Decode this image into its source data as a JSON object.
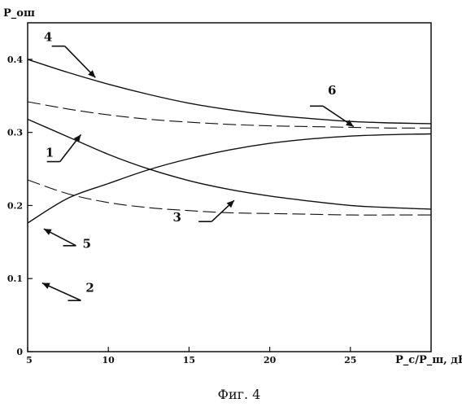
{
  "chart_data": {
    "type": "line",
    "title": "",
    "xlabel": "P_c/P_ш, дБ",
    "ylabel": "P_ош",
    "caption": "Фиг. 4",
    "xlim": [
      5,
      30
    ],
    "ylim": [
      0,
      0.45
    ],
    "x_ticks": [
      5,
      10,
      15,
      20,
      25
    ],
    "y_ticks": [
      0,
      0.1,
      0.2,
      0.3,
      0.4
    ],
    "series": [
      {
        "name": "4",
        "style": "solid",
        "x": [
          5,
          7.5,
          10,
          12.5,
          15,
          17.5,
          20,
          22.5,
          25,
          27.5,
          30
        ],
        "y": [
          0.4,
          0.382,
          0.366,
          0.352,
          0.34,
          0.331,
          0.324,
          0.319,
          0.315,
          0.313,
          0.312
        ]
      },
      {
        "name": "6",
        "style": "dashed",
        "x": [
          5,
          7.5,
          10,
          12.5,
          15,
          17.5,
          20,
          22.5,
          25,
          27.5,
          30
        ],
        "y": [
          0.342,
          0.332,
          0.324,
          0.318,
          0.314,
          0.311,
          0.309,
          0.308,
          0.307,
          0.306,
          0.306
        ]
      },
      {
        "name": "1",
        "style": "solid",
        "x": [
          5,
          7.5,
          10,
          12.5,
          15,
          17.5,
          20,
          22.5,
          25,
          27.5,
          30
        ],
        "y": [
          0.318,
          0.294,
          0.27,
          0.25,
          0.234,
          0.222,
          0.213,
          0.206,
          0.2,
          0.197,
          0.195
        ]
      },
      {
        "name": "5",
        "style": "solid",
        "x": [
          5,
          7.5,
          10,
          12.5,
          15,
          17.5,
          20,
          22.5,
          25,
          27.5,
          30
        ],
        "y": [
          0.176,
          0.21,
          0.23,
          0.249,
          0.264,
          0.276,
          0.285,
          0.291,
          0.295,
          0.297,
          0.298
        ]
      },
      {
        "name": "3",
        "style": "dashed",
        "x": [
          5,
          7.5,
          10,
          12.5,
          15,
          17.5,
          20,
          22.5,
          25,
          27.5,
          30
        ],
        "y": [
          0.235,
          0.216,
          0.204,
          0.197,
          0.193,
          0.19,
          0.189,
          0.188,
          0.187,
          0.187,
          0.187
        ]
      }
    ],
    "labels": [
      {
        "text": "4",
        "at_x": 9.2,
        "at_y": 0.375,
        "anchor_x": 7.3,
        "anchor_y": 0.418,
        "text_x": 6.0,
        "text_y": 0.425
      },
      {
        "text": "6",
        "at_x": 25.2,
        "at_y": 0.308,
        "anchor_x": 23.3,
        "anchor_y": 0.336,
        "text_x": 23.6,
        "text_y": 0.352
      },
      {
        "text": "1",
        "at_x": 8.3,
        "at_y": 0.297,
        "anchor_x": 7.0,
        "anchor_y": 0.26,
        "text_x": 6.1,
        "text_y": 0.267
      },
      {
        "text": "5",
        "at_x": 6.0,
        "at_y": 0.168,
        "anchor_x": 8.0,
        "anchor_y": 0.145,
        "text_x": 8.4,
        "text_y": 0.142
      },
      {
        "text": "3",
        "at_x": 17.8,
        "at_y": 0.207,
        "anchor_x": 16.4,
        "anchor_y": 0.178,
        "text_x": 14.0,
        "text_y": 0.178
      },
      {
        "text": "2",
        "at_x": 5.9,
        "at_y": 0.094,
        "anchor_x": 8.3,
        "anchor_y": 0.07,
        "text_x": 8.6,
        "text_y": 0.082
      }
    ]
  }
}
